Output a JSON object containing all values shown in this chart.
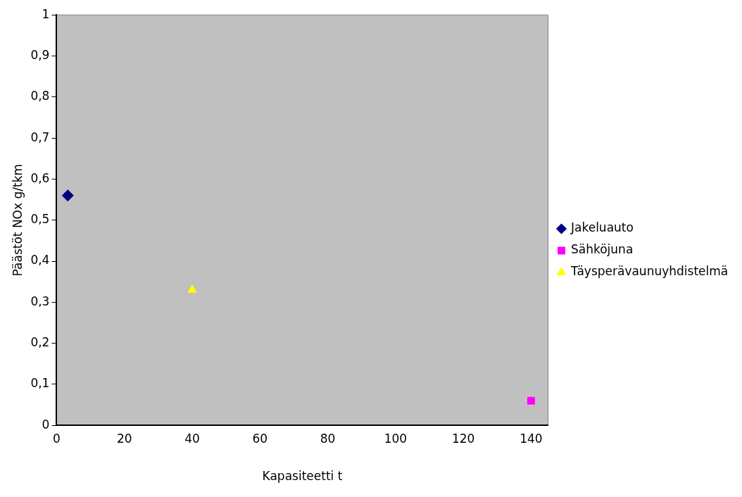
{
  "chart_data": {
    "type": "scatter",
    "xlabel": "Kapasiteetti t",
    "ylabel": "Päästöt NOx g/tkm",
    "series": [
      {
        "name": "Jakeluauto",
        "color": "#000080",
        "marker": "diamond",
        "x": [
          3.3
        ],
        "values": [
          0.56
        ]
      },
      {
        "name": "Sähköjuna",
        "color": "#ff00ff",
        "marker": "square",
        "x": [
          140
        ],
        "values": [
          0.06
        ]
      },
      {
        "name": "Täysperävaunuyhdistelmä",
        "color": "#ffff00",
        "marker": "triangle",
        "x": [
          40
        ],
        "values": [
          0.33
        ]
      }
    ],
    "xlim": [
      0,
      145
    ],
    "xticks": [
      0,
      20,
      40,
      60,
      80,
      100,
      120,
      140
    ],
    "ylim": [
      0,
      1
    ],
    "yticks": [
      {
        "value": 0,
        "label": "0"
      },
      {
        "value": 0.1,
        "label": "0,1"
      },
      {
        "value": 0.2,
        "label": "0,2"
      },
      {
        "value": 0.3,
        "label": "0,3"
      },
      {
        "value": 0.4,
        "label": "0,4"
      },
      {
        "value": 0.5,
        "label": "0,5"
      },
      {
        "value": 0.6,
        "label": "0,6"
      },
      {
        "value": 0.7,
        "label": "0,7"
      },
      {
        "value": 0.8,
        "label": "0,8"
      },
      {
        "value": 0.9,
        "label": "0,9"
      },
      {
        "value": 1,
        "label": "1"
      }
    ],
    "grid": false,
    "legend": "right"
  }
}
